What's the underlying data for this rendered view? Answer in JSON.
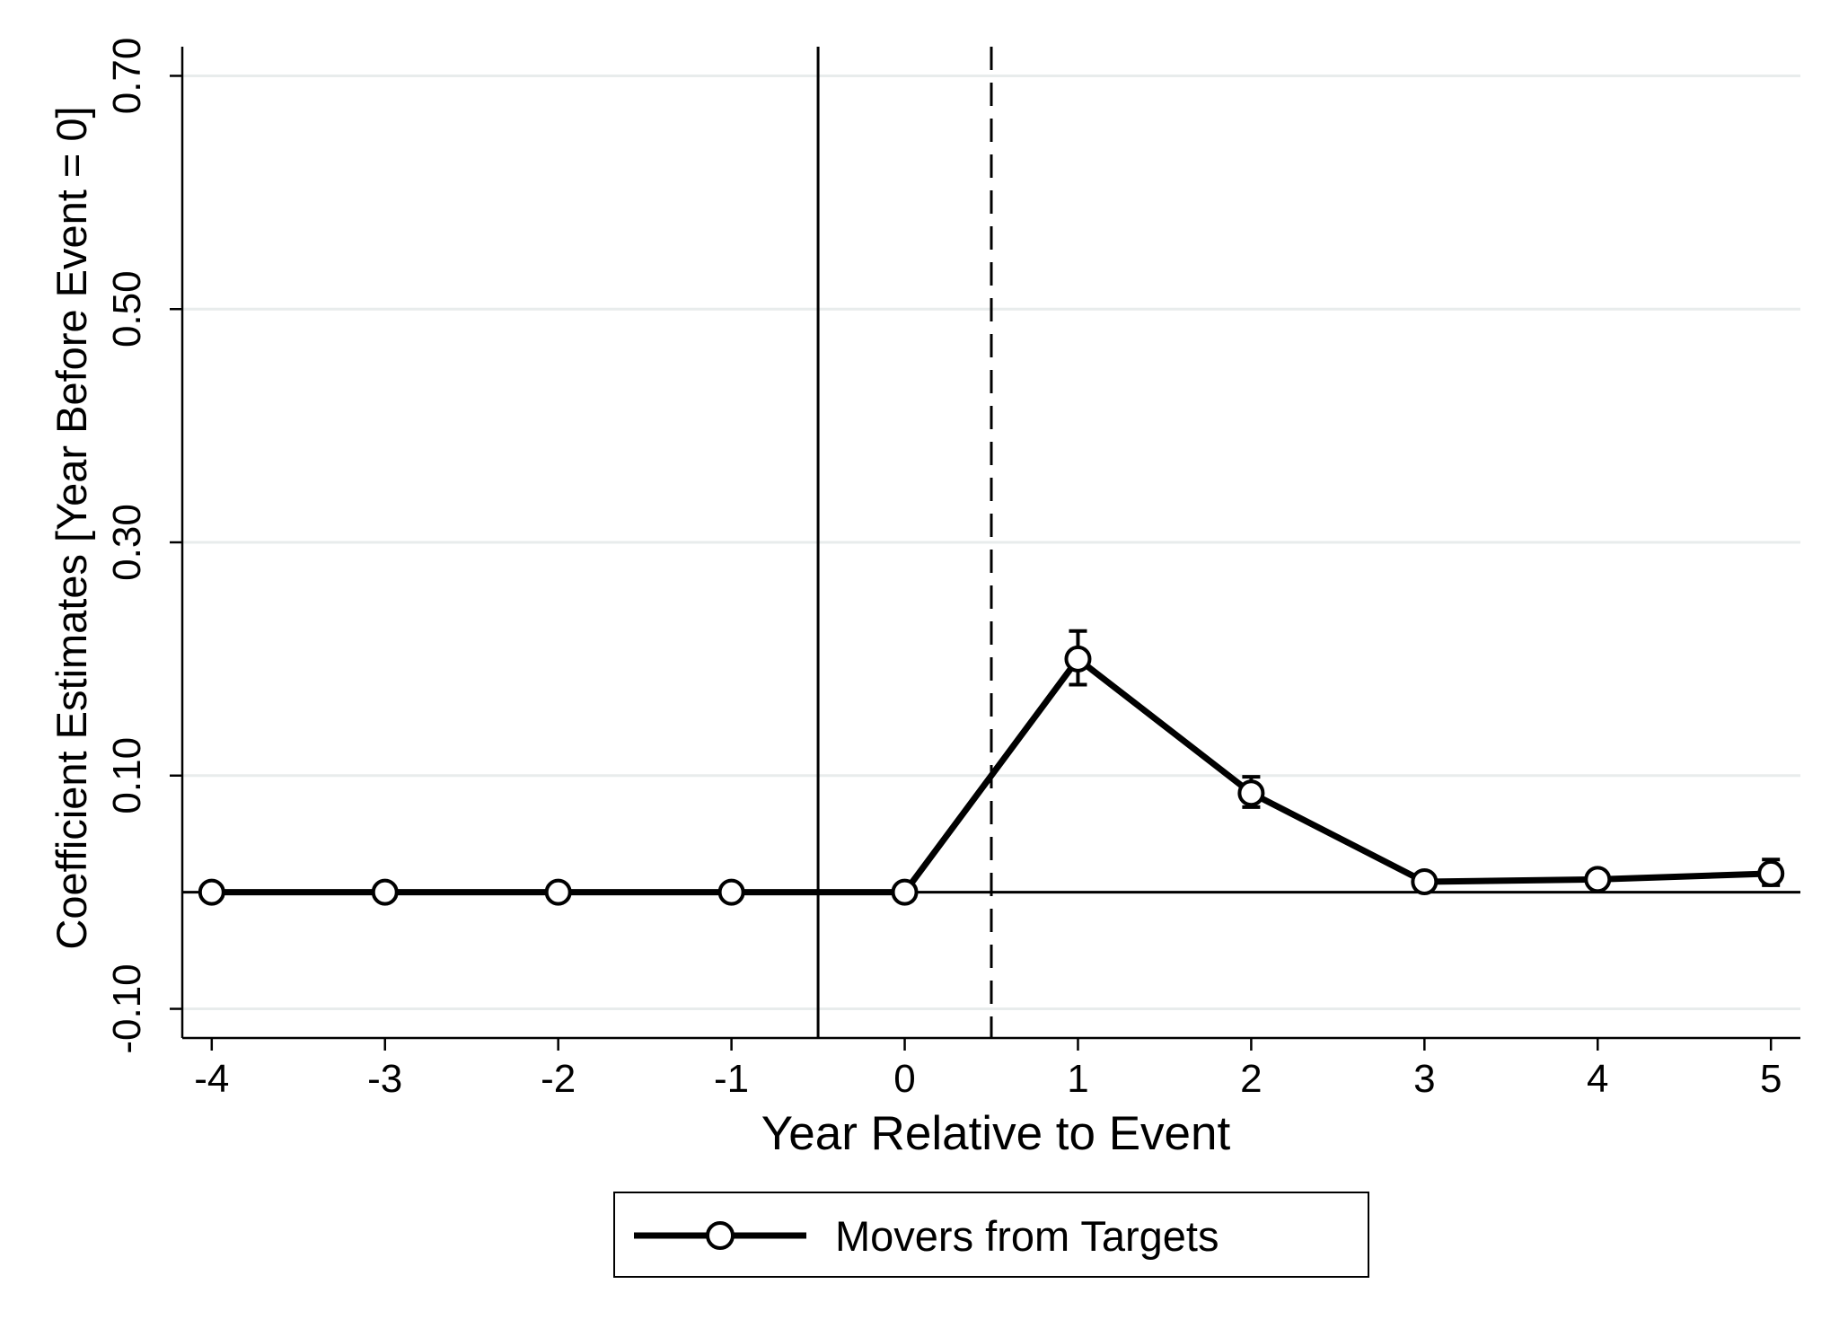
{
  "chart_data": {
    "type": "line",
    "xlabel": "Year Relative to Event",
    "ylabel": "Coefficient Estimates [Year Before Event = 0]",
    "xlim": [
      -4.17,
      5.17
    ],
    "ylim": [
      -0.125,
      0.725
    ],
    "x_ticks": [
      -4,
      -3,
      -2,
      -1,
      0,
      1,
      2,
      3,
      4,
      5
    ],
    "x_tick_labels": [
      "-4",
      "-3",
      "-2",
      "-1",
      "0",
      "1",
      "2",
      "3",
      "4",
      "5"
    ],
    "y_ticks": [
      -0.1,
      0.1,
      0.3,
      0.5,
      0.7
    ],
    "y_tick_labels": [
      "-0.10",
      "0.10",
      "0.30",
      "0.50",
      "0.70"
    ],
    "grid": "horizontal",
    "reference_lines": {
      "horizontal_y": 0,
      "vertical_solid_x": -0.5,
      "vertical_dashed_x": 0.5
    },
    "legend_position": "bottom",
    "series": [
      {
        "name": "Movers from Targets",
        "color": "#000000",
        "marker": "hollow-circle",
        "x": [
          -4,
          -3,
          -2,
          -1,
          0,
          1,
          2,
          3,
          4,
          5
        ],
        "y": [
          0,
          0,
          0,
          0,
          0,
          0.2,
          0.085,
          0.009,
          0.011,
          0.016
        ],
        "ci_low": [
          null,
          null,
          null,
          null,
          null,
          0.178,
          0.073,
          0.004,
          0.005,
          0.006
        ],
        "ci_high": [
          null,
          null,
          null,
          null,
          null,
          0.224,
          0.099,
          0.014,
          0.018,
          0.028
        ]
      }
    ]
  }
}
